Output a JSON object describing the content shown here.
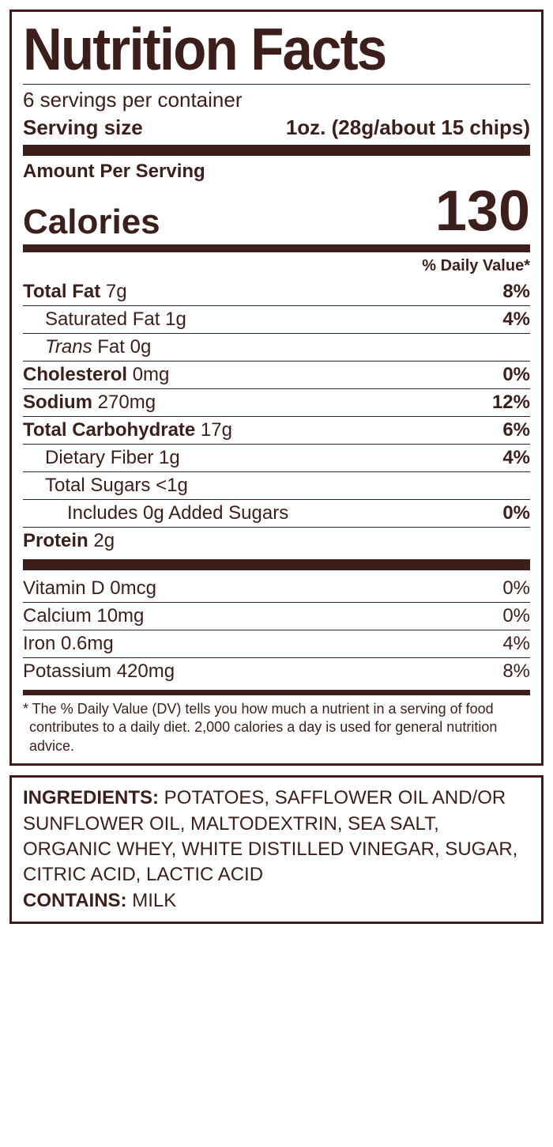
{
  "colors": {
    "text": "#3c1f1a",
    "border": "#3c1f1a",
    "background": "#ffffff"
  },
  "title": "Nutrition Facts",
  "servings_per_container": "6 servings per container",
  "serving_size_label": "Serving size",
  "serving_size_value": "1oz. (28g/about 15 chips)",
  "amount_per_serving": "Amount Per Serving",
  "calories_label": "Calories",
  "calories_value": "130",
  "dv_header": "% Daily Value*",
  "nutrients": {
    "total_fat": {
      "label": "Total Fat",
      "amount": "7g",
      "dv": "8%"
    },
    "sat_fat": {
      "label": "Saturated Fat",
      "amount": "1g",
      "dv": "4%"
    },
    "trans_fat": {
      "prefix": "Trans",
      "suffix": " Fat",
      "amount": "0g",
      "dv": ""
    },
    "cholesterol": {
      "label": "Cholesterol",
      "amount": "0mg",
      "dv": "0%"
    },
    "sodium": {
      "label": "Sodium",
      "amount": "270mg",
      "dv": "12%"
    },
    "total_carb": {
      "label": "Total Carbohydrate",
      "amount": "17g",
      "dv": "6%"
    },
    "fiber": {
      "label": "Dietary Fiber",
      "amount": "1g",
      "dv": "4%"
    },
    "total_sugars": {
      "label": "Total Sugars",
      "amount": "<1g",
      "dv": ""
    },
    "added_sugars": {
      "label": "Includes 0g Added Sugars",
      "dv": "0%"
    },
    "protein": {
      "label": "Protein",
      "amount": "2g",
      "dv": ""
    }
  },
  "vitamins": {
    "vitamin_d": {
      "label": "Vitamin D 0mcg",
      "dv": "0%"
    },
    "calcium": {
      "label": "Calcium 10mg",
      "dv": "0%"
    },
    "iron": {
      "label": "Iron 0.6mg",
      "dv": "4%"
    },
    "potassium": {
      "label": "Potassium 420mg",
      "dv": "8%"
    }
  },
  "footnote": "* The % Daily Value (DV) tells you how much a nutrient in a serving of food contributes to a daily diet. 2,000 calories a day is used for general nutrition advice.",
  "ingredients_label": "INGREDIENTS:",
  "ingredients_text": " POTATOES, SAFFLOWER OIL AND/OR SUNFLOWER OIL, MALTODEXTRIN, SEA SALT, ORGANIC WHEY, WHITE DISTILLED VINEGAR, SUGAR, CITRIC ACID, LACTIC ACID",
  "contains_label": "CONTAINS:",
  "contains_text": " MILK"
}
